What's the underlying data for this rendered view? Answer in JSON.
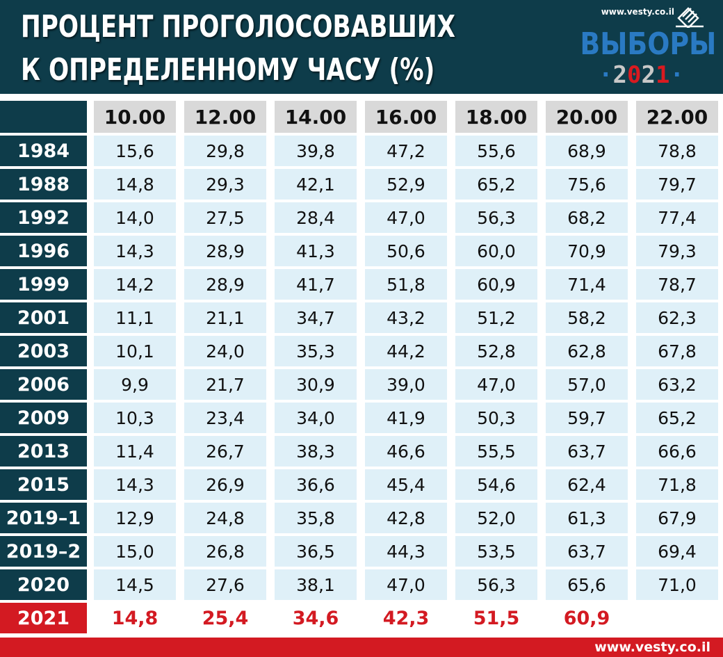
{
  "header": {
    "title_line1": "ПРОЦЕНТ ПРОГОЛОСОВАВШИХ",
    "title_line2": "К ОПРЕДЕЛЕННОМУ ЧАСУ (%)"
  },
  "logo": {
    "site": "www.vesty.co.il",
    "word": "ВЫБОРЫ",
    "year": "2021",
    "colors": {
      "word": "#2a7ac3",
      "accent": "#d91a20"
    }
  },
  "footer": {
    "site": "www.vesty.co.il"
  },
  "colors": {
    "header_bg": "#0e3c4a",
    "cell_bg": "#dff0f8",
    "highlight": "#d31a22",
    "hour_bg": "#d9d9d9"
  },
  "chart_data": {
    "type": "table",
    "columns": [
      "10.00",
      "12.00",
      "14.00",
      "16.00",
      "18.00",
      "20.00",
      "22.00"
    ],
    "rows": [
      {
        "year": "1984",
        "values": [
          "15,6",
          "29,8",
          "39,8",
          "47,2",
          "55,6",
          "68,9",
          "78,8"
        ]
      },
      {
        "year": "1988",
        "values": [
          "14,8",
          "29,3",
          "42,1",
          "52,9",
          "65,2",
          "75,6",
          "79,7"
        ]
      },
      {
        "year": "1992",
        "values": [
          "14,0",
          "27,5",
          "28,4",
          "47,0",
          "56,3",
          "68,2",
          "77,4"
        ]
      },
      {
        "year": "1996",
        "values": [
          "14,3",
          "28,9",
          "41,3",
          "50,6",
          "60,0",
          "70,9",
          "79,3"
        ]
      },
      {
        "year": "1999",
        "values": [
          "14,2",
          "28,9",
          "41,7",
          "51,8",
          "60,9",
          "71,4",
          "78,7"
        ]
      },
      {
        "year": "2001",
        "values": [
          "11,1",
          "21,1",
          "34,7",
          "43,2",
          "51,2",
          "58,2",
          "62,3"
        ]
      },
      {
        "year": "2003",
        "values": [
          "10,1",
          "24,0",
          "35,3",
          "44,2",
          "52,8",
          "62,8",
          "67,8"
        ]
      },
      {
        "year": "2006",
        "values": [
          "9,9",
          "21,7",
          "30,9",
          "39,0",
          "47,0",
          "57,0",
          "63,2"
        ]
      },
      {
        "year": "2009",
        "values": [
          "10,3",
          "23,4",
          "34,0",
          "41,9",
          "50,3",
          "59,7",
          "65,2"
        ]
      },
      {
        "year": "2013",
        "values": [
          "11,4",
          "26,7",
          "38,3",
          "46,6",
          "55,5",
          "63,7",
          "66,6"
        ]
      },
      {
        "year": "2015",
        "values": [
          "14,3",
          "26,9",
          "36,6",
          "45,4",
          "54,6",
          "62,4",
          "71,8"
        ]
      },
      {
        "year": "2019–1",
        "values": [
          "12,9",
          "24,8",
          "35,8",
          "42,8",
          "52,0",
          "61,3",
          "67,9"
        ]
      },
      {
        "year": "2019–2",
        "values": [
          "15,0",
          "26,8",
          "36,5",
          "44,3",
          "53,5",
          "63,7",
          "69,4"
        ]
      },
      {
        "year": "2020",
        "values": [
          "14,5",
          "27,6",
          "38,1",
          "47,0",
          "56,3",
          "65,6",
          "71,0"
        ]
      },
      {
        "year": "2021",
        "values": [
          "14,8",
          "25,4",
          "34,6",
          "42,3",
          "51,5",
          "60,9",
          ""
        ]
      }
    ]
  }
}
